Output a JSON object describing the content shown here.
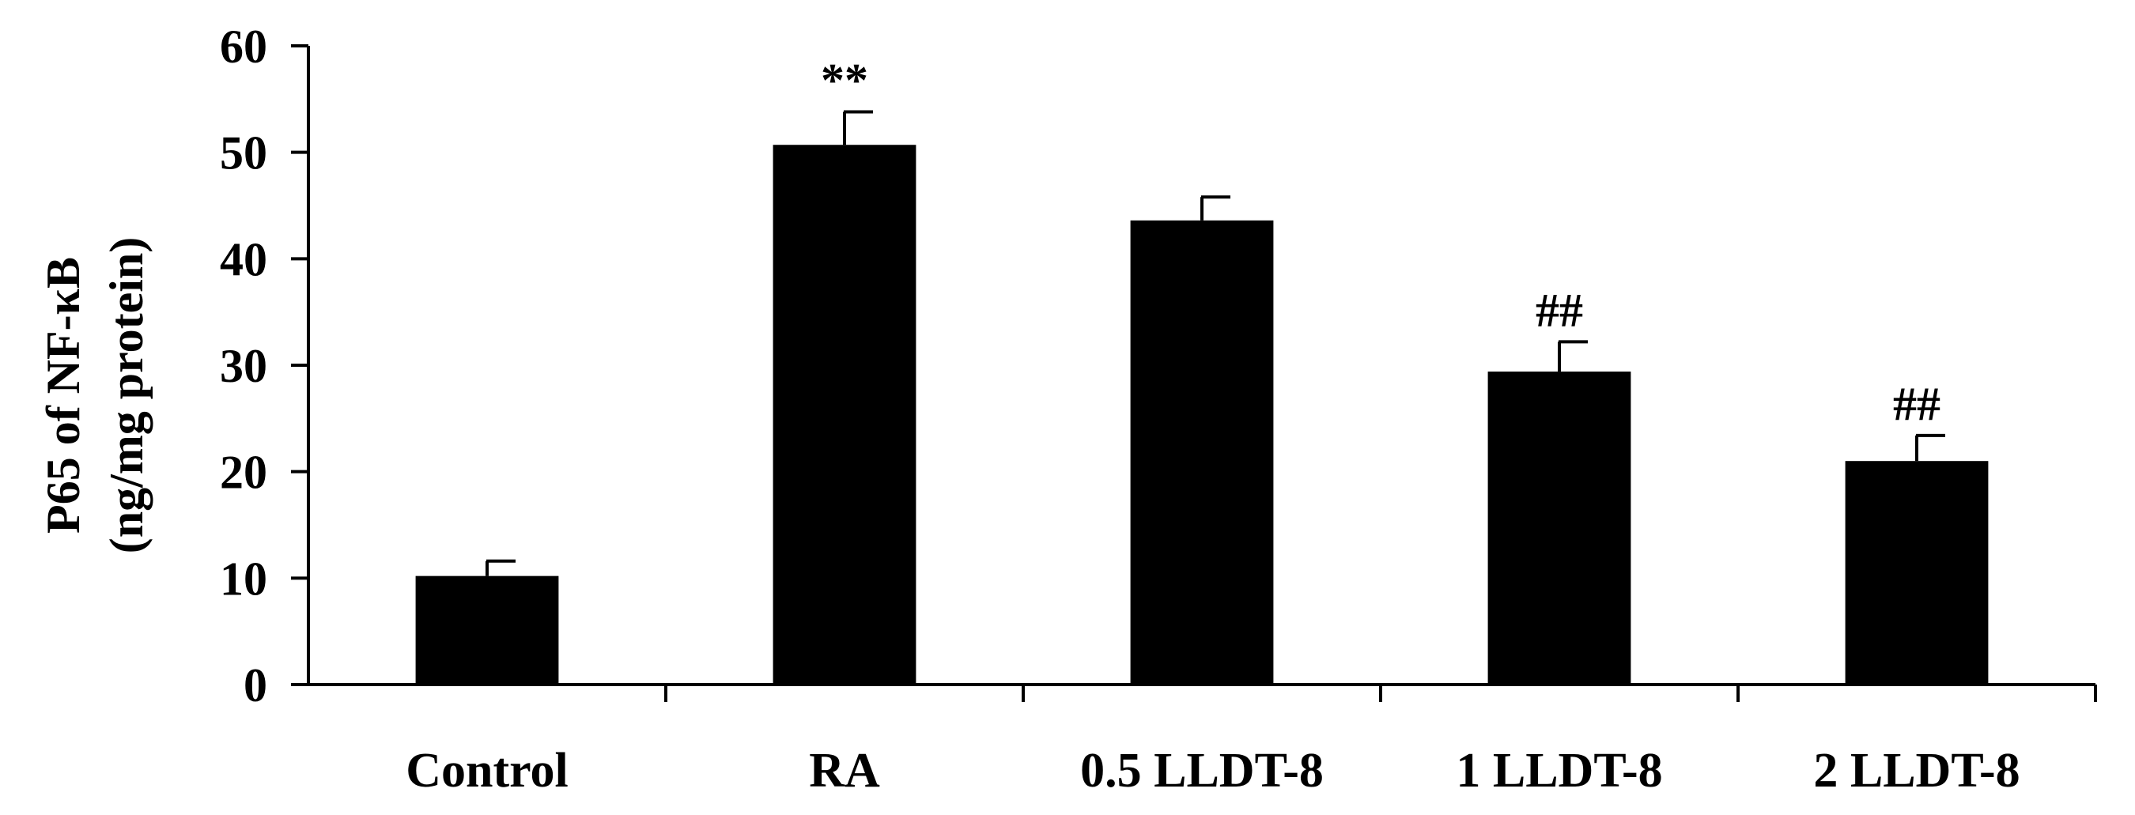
{
  "chart_data": {
    "type": "bar",
    "title": "",
    "xlabel": "",
    "ylabel_lines": [
      "P65 of NF-κB",
      "(ng/mg protein)"
    ],
    "ylim": [
      0,
      60
    ],
    "yticks": [
      0,
      10,
      20,
      30,
      40,
      50,
      60
    ],
    "categories": [
      "Control",
      "RA",
      "0.5 LLDT-8",
      "1 LLDT-8",
      "2 LLDT-8"
    ],
    "values": [
      10.2,
      50.7,
      43.6,
      29.4,
      21.0
    ],
    "errors": [
      1.4,
      3.1,
      2.2,
      2.8,
      2.4
    ],
    "annotations": [
      "",
      "**",
      "",
      "##",
      "##"
    ],
    "bar_color": "#000000",
    "grid": false,
    "legend": "none"
  }
}
